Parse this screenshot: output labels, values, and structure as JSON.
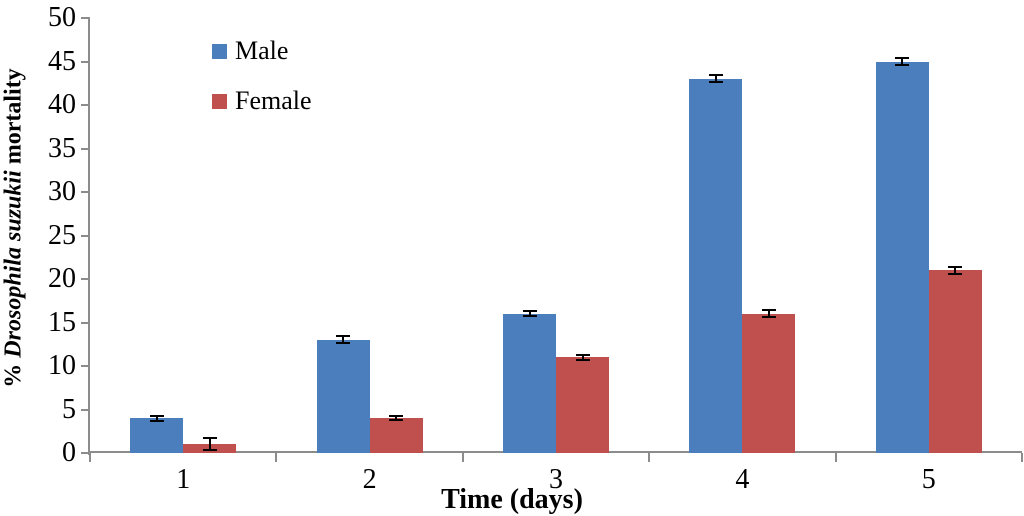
{
  "chart_data": {
    "type": "bar",
    "title": "",
    "categories": [
      "1",
      "2",
      "3",
      "4",
      "5"
    ],
    "series": [
      {
        "name": "Male",
        "color": "#4A7EBD",
        "values": [
          4,
          13,
          16,
          43,
          45
        ],
        "errors": [
          0.3,
          0.4,
          0.3,
          0.4,
          0.4
        ]
      },
      {
        "name": "Female",
        "color": "#C0504D",
        "values": [
          1,
          4,
          11,
          16,
          21
        ],
        "errors": [
          0.7,
          0.2,
          0.3,
          0.4,
          0.4
        ]
      }
    ],
    "xlabel": "Time (days)",
    "ylabel_prefix": "% ",
    "ylabel_species": "Drosophila suzukii",
    "ylabel_suffix": " mortality",
    "ylim": [
      0,
      50
    ],
    "yticks": [
      0,
      5,
      10,
      15,
      20,
      25,
      30,
      35,
      40,
      45,
      50
    ],
    "grid": false,
    "error_bars": true,
    "legend_position": "top-left-inside",
    "colors": {
      "axis": "#8C8C8C",
      "error_bar": "#000000",
      "text": "#000000",
      "background": "#FFFFFF"
    }
  }
}
